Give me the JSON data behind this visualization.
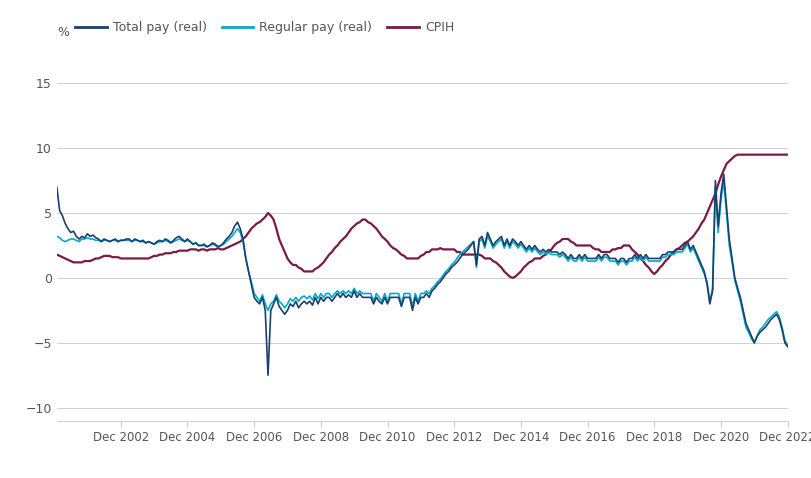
{
  "ylabel": "%",
  "ylim": [
    -11,
    17
  ],
  "yticks": [
    -10,
    -5,
    0,
    5,
    10,
    15
  ],
  "colors": {
    "total_pay": "#1b3f6e",
    "regular_pay": "#00aac8",
    "cpih": "#7b1a42"
  },
  "legend_labels": [
    "Total pay (real)",
    "Regular pay (real)",
    "CPIH"
  ],
  "xtick_labels": [
    "Dec 2002",
    "Dec 2004",
    "Dec 2006",
    "Dec 2008",
    "Dec 2010",
    "Dec 2012",
    "Dec 2014",
    "Dec 2016",
    "Dec 2018",
    "Dec 2020",
    "Dec 2022"
  ],
  "background_color": "#ffffff",
  "grid_color": "#d0d0d0",
  "total_pay": [
    7.0,
    5.2,
    4.8,
    4.2,
    3.8,
    3.5,
    3.6,
    3.2,
    3.0,
    3.2,
    3.1,
    3.4,
    3.2,
    3.3,
    3.1,
    3.0,
    2.8,
    3.0,
    2.9,
    2.8,
    2.9,
    3.0,
    2.8,
    2.9,
    2.9,
    3.0,
    3.0,
    2.8,
    3.0,
    2.9,
    2.8,
    2.9,
    2.7,
    2.8,
    2.7,
    2.6,
    2.8,
    2.9,
    2.8,
    3.0,
    2.9,
    2.7,
    2.9,
    3.1,
    3.2,
    3.0,
    2.8,
    3.0,
    2.8,
    2.6,
    2.7,
    2.5,
    2.5,
    2.6,
    2.4,
    2.5,
    2.7,
    2.6,
    2.4,
    2.5,
    2.7,
    3.0,
    3.2,
    3.5,
    4.0,
    4.3,
    3.8,
    3.0,
    1.5,
    0.5,
    -0.5,
    -1.5,
    -1.8,
    -2.0,
    -1.5,
    -2.5,
    -7.5,
    -2.5,
    -2.0,
    -1.5,
    -2.2,
    -2.5,
    -2.8,
    -2.5,
    -2.0,
    -2.2,
    -1.8,
    -2.3,
    -2.0,
    -1.8,
    -2.0,
    -1.8,
    -2.1,
    -1.5,
    -2.0,
    -1.5,
    -1.8,
    -1.5,
    -1.5,
    -1.8,
    -1.5,
    -1.2,
    -1.5,
    -1.2,
    -1.5,
    -1.3,
    -1.5,
    -1.0,
    -1.5,
    -1.2,
    -1.5,
    -1.5,
    -1.5,
    -1.5,
    -2.0,
    -1.5,
    -1.8,
    -2.0,
    -1.5,
    -2.0,
    -1.5,
    -1.5,
    -1.5,
    -1.5,
    -2.2,
    -1.5,
    -1.5,
    -1.5,
    -2.5,
    -1.5,
    -2.0,
    -1.5,
    -1.5,
    -1.2,
    -1.5,
    -1.0,
    -0.8,
    -0.5,
    -0.3,
    0.0,
    0.3,
    0.5,
    0.8,
    1.0,
    1.2,
    1.5,
    1.8,
    2.0,
    2.2,
    2.5,
    2.8,
    1.0,
    3.0,
    3.2,
    2.5,
    3.5,
    3.0,
    2.5,
    2.8,
    3.0,
    3.2,
    2.5,
    3.0,
    2.5,
    3.0,
    2.8,
    2.5,
    2.8,
    2.5,
    2.2,
    2.5,
    2.2,
    2.5,
    2.2,
    2.0,
    2.2,
    2.0,
    2.2,
    2.0,
    2.0,
    2.0,
    1.8,
    2.0,
    1.8,
    1.5,
    1.8,
    1.5,
    1.5,
    1.8,
    1.5,
    1.8,
    1.5,
    1.5,
    1.5,
    1.5,
    1.8,
    1.5,
    1.8,
    1.8,
    1.5,
    1.5,
    1.5,
    1.2,
    1.5,
    1.5,
    1.2,
    1.5,
    1.5,
    1.8,
    1.5,
    1.8,
    1.5,
    1.8,
    1.5,
    1.5,
    1.5,
    1.5,
    1.5,
    1.8,
    1.8,
    2.0,
    2.0,
    2.0,
    2.2,
    2.2,
    2.2,
    2.5,
    2.8,
    2.2,
    2.5,
    2.0,
    1.5,
    1.0,
    0.5,
    -0.5,
    -2.0,
    -1.0,
    7.5,
    4.0,
    6.5,
    8.0,
    5.5,
    3.0,
    1.5,
    0.0,
    -0.8,
    -1.5,
    -2.5,
    -3.5,
    -4.0,
    -4.5,
    -5.0,
    -4.5,
    -4.2,
    -4.0,
    -3.8,
    -3.5,
    -3.2,
    -3.0,
    -2.8,
    -3.2,
    -4.0,
    -5.0,
    -5.3
  ],
  "regular_pay": [
    3.2,
    3.1,
    2.9,
    2.8,
    2.9,
    3.0,
    3.0,
    2.9,
    2.8,
    3.0,
    3.0,
    3.1,
    3.0,
    3.0,
    2.9,
    2.9,
    2.8,
    2.9,
    2.9,
    2.8,
    2.9,
    2.9,
    2.8,
    2.9,
    2.9,
    2.9,
    2.9,
    2.8,
    2.9,
    2.9,
    2.8,
    2.8,
    2.7,
    2.8,
    2.7,
    2.6,
    2.7,
    2.8,
    2.8,
    2.9,
    2.8,
    2.7,
    2.8,
    2.9,
    3.0,
    2.9,
    2.8,
    2.9,
    2.8,
    2.6,
    2.7,
    2.5,
    2.5,
    2.5,
    2.4,
    2.5,
    2.6,
    2.5,
    2.4,
    2.5,
    2.6,
    2.8,
    3.0,
    3.2,
    3.5,
    3.8,
    3.5,
    2.8,
    1.5,
    0.5,
    -0.3,
    -1.2,
    -1.5,
    -1.8,
    -1.3,
    -2.0,
    -2.5,
    -2.0,
    -1.8,
    -1.3,
    -1.8,
    -2.0,
    -2.3,
    -2.0,
    -1.6,
    -1.8,
    -1.5,
    -1.8,
    -1.5,
    -1.4,
    -1.6,
    -1.4,
    -1.7,
    -1.2,
    -1.6,
    -1.2,
    -1.5,
    -1.2,
    -1.2,
    -1.5,
    -1.2,
    -1.0,
    -1.2,
    -1.0,
    -1.2,
    -1.0,
    -1.2,
    -0.8,
    -1.2,
    -1.0,
    -1.2,
    -1.2,
    -1.2,
    -1.2,
    -1.8,
    -1.2,
    -1.5,
    -1.8,
    -1.2,
    -1.8,
    -1.2,
    -1.2,
    -1.2,
    -1.2,
    -2.0,
    -1.2,
    -1.2,
    -1.2,
    -2.2,
    -1.2,
    -1.8,
    -1.2,
    -1.2,
    -1.0,
    -1.2,
    -0.8,
    -0.6,
    -0.3,
    -0.1,
    0.2,
    0.5,
    0.7,
    1.0,
    1.2,
    1.5,
    1.8,
    2.0,
    2.2,
    2.4,
    2.6,
    2.8,
    0.8,
    2.8,
    3.0,
    2.3,
    3.2,
    2.8,
    2.3,
    2.6,
    2.8,
    3.0,
    2.3,
    2.8,
    2.3,
    2.8,
    2.6,
    2.3,
    2.6,
    2.3,
    2.0,
    2.3,
    2.0,
    2.3,
    2.0,
    1.8,
    2.0,
    1.8,
    2.0,
    1.8,
    1.8,
    1.8,
    1.6,
    1.8,
    1.6,
    1.3,
    1.6,
    1.3,
    1.3,
    1.6,
    1.3,
    1.6,
    1.3,
    1.3,
    1.3,
    1.3,
    1.6,
    1.3,
    1.6,
    1.6,
    1.3,
    1.3,
    1.3,
    1.0,
    1.3,
    1.3,
    1.0,
    1.3,
    1.3,
    1.6,
    1.3,
    1.6,
    1.3,
    1.6,
    1.3,
    1.3,
    1.3,
    1.3,
    1.3,
    1.6,
    1.6,
    1.8,
    1.8,
    1.8,
    2.0,
    2.0,
    2.0,
    2.3,
    2.6,
    2.0,
    2.3,
    1.8,
    1.3,
    0.8,
    0.3,
    -0.3,
    -1.8,
    -0.8,
    7.0,
    3.5,
    6.0,
    7.5,
    5.0,
    2.5,
    1.2,
    -0.2,
    -1.0,
    -1.8,
    -2.8,
    -3.8,
    -4.2,
    -4.7,
    -5.0,
    -4.5,
    -4.0,
    -3.8,
    -3.5,
    -3.2,
    -3.0,
    -2.8,
    -2.6,
    -3.0,
    -3.8,
    -4.8,
    -5.2
  ],
  "cpih": [
    1.8,
    1.7,
    1.6,
    1.5,
    1.4,
    1.3,
    1.2,
    1.2,
    1.2,
    1.2,
    1.3,
    1.3,
    1.3,
    1.4,
    1.5,
    1.5,
    1.6,
    1.7,
    1.7,
    1.7,
    1.6,
    1.6,
    1.6,
    1.5,
    1.5,
    1.5,
    1.5,
    1.5,
    1.5,
    1.5,
    1.5,
    1.5,
    1.5,
    1.5,
    1.6,
    1.7,
    1.7,
    1.8,
    1.8,
    1.9,
    1.9,
    1.9,
    2.0,
    2.0,
    2.1,
    2.1,
    2.1,
    2.1,
    2.2,
    2.2,
    2.2,
    2.1,
    2.2,
    2.2,
    2.1,
    2.2,
    2.2,
    2.2,
    2.3,
    2.2,
    2.2,
    2.3,
    2.4,
    2.5,
    2.6,
    2.7,
    2.8,
    3.0,
    3.2,
    3.5,
    3.8,
    4.0,
    4.2,
    4.3,
    4.5,
    4.7,
    5.0,
    4.8,
    4.5,
    3.8,
    3.0,
    2.5,
    2.0,
    1.5,
    1.2,
    1.0,
    1.0,
    0.8,
    0.7,
    0.5,
    0.5,
    0.5,
    0.5,
    0.7,
    0.8,
    1.0,
    1.2,
    1.5,
    1.8,
    2.0,
    2.3,
    2.5,
    2.8,
    3.0,
    3.2,
    3.5,
    3.8,
    4.0,
    4.2,
    4.3,
    4.5,
    4.5,
    4.3,
    4.2,
    4.0,
    3.8,
    3.5,
    3.2,
    3.0,
    2.8,
    2.5,
    2.3,
    2.2,
    2.0,
    1.8,
    1.7,
    1.5,
    1.5,
    1.5,
    1.5,
    1.5,
    1.7,
    1.8,
    2.0,
    2.0,
    2.2,
    2.2,
    2.2,
    2.3,
    2.2,
    2.2,
    2.2,
    2.2,
    2.2,
    2.0,
    2.0,
    1.8,
    1.8,
    1.8,
    1.8,
    1.8,
    1.8,
    1.8,
    1.7,
    1.5,
    1.5,
    1.5,
    1.3,
    1.2,
    1.0,
    0.8,
    0.5,
    0.3,
    0.1,
    0.0,
    0.1,
    0.3,
    0.5,
    0.8,
    1.0,
    1.2,
    1.3,
    1.5,
    1.5,
    1.5,
    1.7,
    1.8,
    2.0,
    2.2,
    2.5,
    2.7,
    2.8,
    3.0,
    3.0,
    3.0,
    2.8,
    2.7,
    2.5,
    2.5,
    2.5,
    2.5,
    2.5,
    2.5,
    2.3,
    2.2,
    2.2,
    2.0,
    2.0,
    2.0,
    2.0,
    2.2,
    2.2,
    2.3,
    2.3,
    2.5,
    2.5,
    2.5,
    2.2,
    2.0,
    1.8,
    1.5,
    1.3,
    1.0,
    0.8,
    0.5,
    0.3,
    0.5,
    0.8,
    1.0,
    1.3,
    1.5,
    1.8,
    2.0,
    2.2,
    2.3,
    2.5,
    2.7,
    2.8,
    3.0,
    3.2,
    3.5,
    3.8,
    4.2,
    4.5,
    5.0,
    5.5,
    6.0,
    6.5,
    7.2,
    7.8,
    8.3,
    8.8,
    9.0,
    9.2,
    9.4,
    9.5,
    9.5,
    9.5,
    9.5,
    9.5,
    9.5,
    9.5,
    9.5,
    9.5,
    9.5,
    9.5,
    9.5,
    9.5,
    9.5,
    9.5,
    9.5,
    9.5,
    9.5,
    9.5
  ]
}
